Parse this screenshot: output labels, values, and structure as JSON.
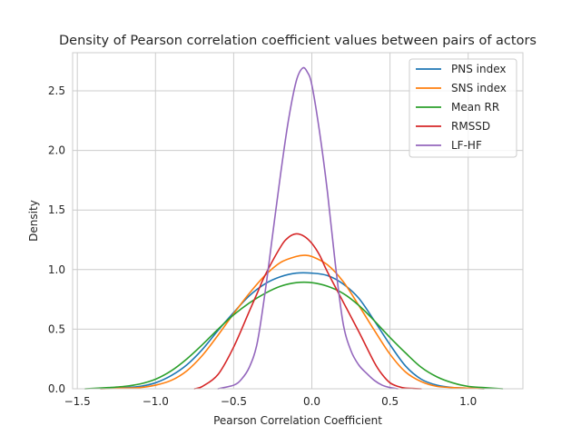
{
  "chart_data": {
    "type": "line",
    "title": "Density of Pearson correlation coefficient values between pairs of actors",
    "xlabel": "Pearson Correlation Coefficient",
    "ylabel": "Density",
    "xlim": [
      -1.53,
      1.35
    ],
    "ylim": [
      0,
      2.82
    ],
    "xticks": [
      -1.5,
      -1.0,
      -0.5,
      0.0,
      0.5,
      1.0
    ],
    "xtick_labels": [
      "−1.5",
      "−1.0",
      "−0.5",
      "0.0",
      "0.5",
      "1.0"
    ],
    "yticks": [
      0.0,
      0.5,
      1.0,
      1.5,
      2.0,
      2.5
    ],
    "ytick_labels": [
      "0.0",
      "0.5",
      "1.0",
      "1.5",
      "2.0",
      "2.5"
    ],
    "grid": true,
    "legend_position": "top-right",
    "series": [
      {
        "name": "PNS index",
        "color": "#1f77b4",
        "x": [
          -1.35,
          -1.2,
          -1.1,
          -1.0,
          -0.9,
          -0.8,
          -0.7,
          -0.6,
          -0.5,
          -0.4,
          -0.3,
          -0.2,
          -0.1,
          0.0,
          0.1,
          0.2,
          0.3,
          0.4,
          0.5,
          0.6,
          0.7,
          0.8,
          0.9,
          1.0,
          1.1
        ],
        "y": [
          0.0,
          0.01,
          0.02,
          0.05,
          0.11,
          0.2,
          0.33,
          0.49,
          0.64,
          0.78,
          0.88,
          0.94,
          0.97,
          0.97,
          0.95,
          0.88,
          0.76,
          0.57,
          0.37,
          0.19,
          0.08,
          0.03,
          0.01,
          0.005,
          0.0
        ]
      },
      {
        "name": "SNS index",
        "color": "#ff7f0e",
        "x": [
          -1.35,
          -1.2,
          -1.1,
          -1.0,
          -0.9,
          -0.8,
          -0.7,
          -0.6,
          -0.5,
          -0.4,
          -0.3,
          -0.2,
          -0.1,
          -0.05,
          0.0,
          0.1,
          0.2,
          0.3,
          0.4,
          0.5,
          0.6,
          0.7,
          0.8,
          0.9,
          1.0,
          1.1
        ],
        "y": [
          0.0,
          0.005,
          0.01,
          0.03,
          0.07,
          0.15,
          0.28,
          0.45,
          0.63,
          0.8,
          0.95,
          1.06,
          1.11,
          1.12,
          1.11,
          1.04,
          0.9,
          0.7,
          0.49,
          0.29,
          0.14,
          0.06,
          0.02,
          0.01,
          0.005,
          0.0
        ]
      },
      {
        "name": "Mean RR",
        "color": "#2ca02c",
        "x": [
          -1.45,
          -1.3,
          -1.2,
          -1.1,
          -1.0,
          -0.9,
          -0.8,
          -0.7,
          -0.6,
          -0.5,
          -0.4,
          -0.3,
          -0.2,
          -0.1,
          0.0,
          0.1,
          0.2,
          0.3,
          0.4,
          0.5,
          0.6,
          0.7,
          0.8,
          0.9,
          1.0,
          1.1,
          1.22
        ],
        "y": [
          0.0,
          0.01,
          0.02,
          0.04,
          0.08,
          0.15,
          0.25,
          0.37,
          0.5,
          0.62,
          0.72,
          0.8,
          0.86,
          0.89,
          0.89,
          0.86,
          0.8,
          0.7,
          0.57,
          0.43,
          0.3,
          0.18,
          0.1,
          0.05,
          0.02,
          0.01,
          0.0
        ]
      },
      {
        "name": "RMSSD",
        "color": "#d62728",
        "x": [
          -0.75,
          -0.7,
          -0.6,
          -0.5,
          -0.4,
          -0.35,
          -0.3,
          -0.2,
          -0.15,
          -0.1,
          -0.05,
          0.0,
          0.05,
          0.1,
          0.2,
          0.3,
          0.4,
          0.45,
          0.5,
          0.55,
          0.6,
          0.7
        ],
        "y": [
          0.0,
          0.02,
          0.12,
          0.35,
          0.65,
          0.8,
          0.95,
          1.19,
          1.27,
          1.3,
          1.28,
          1.22,
          1.12,
          0.98,
          0.73,
          0.48,
          0.22,
          0.12,
          0.05,
          0.02,
          0.005,
          0.0
        ]
      },
      {
        "name": "LF-HF",
        "color": "#9467bd",
        "x": [
          -0.6,
          -0.5,
          -0.45,
          -0.4,
          -0.35,
          -0.3,
          -0.25,
          -0.2,
          -0.15,
          -0.1,
          -0.06,
          -0.03,
          0.0,
          0.05,
          0.1,
          0.15,
          0.2,
          0.25,
          0.3,
          0.35,
          0.4,
          0.45,
          0.5,
          0.55
        ],
        "y": [
          0.0,
          0.03,
          0.08,
          0.18,
          0.38,
          0.8,
          1.3,
          1.8,
          2.25,
          2.58,
          2.69,
          2.66,
          2.55,
          2.15,
          1.65,
          1.05,
          0.55,
          0.32,
          0.2,
          0.13,
          0.07,
          0.03,
          0.01,
          0.0
        ]
      }
    ]
  }
}
